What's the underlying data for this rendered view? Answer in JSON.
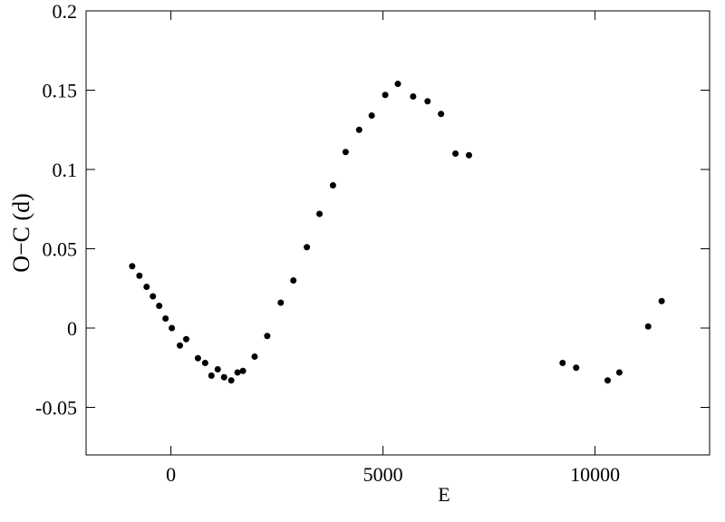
{
  "chart_data": {
    "type": "scatter",
    "xlabel": "E",
    "ylabel": "O−C (d)",
    "xlim": [
      -2000,
      12700
    ],
    "xticks": [
      0,
      5000,
      10000
    ],
    "ylim": [
      -0.08,
      0.2
    ],
    "yticks": [
      -0.05,
      0,
      0.05,
      0.1,
      0.15,
      0.2
    ],
    "color": "#000000",
    "x": [
      -913,
      -743,
      -573,
      -425,
      -276,
      -127,
      21,
      212,
      361,
      637,
      807,
      955,
      1104,
      1253,
      1422,
      1571,
      1698,
      1974,
      2271,
      2590,
      2887,
      3205,
      3503,
      3821,
      4119,
      4437,
      4734,
      5053,
      5350,
      5711,
      6051,
      6369,
      6709,
      7027,
      9235,
      9554,
      10297,
      10573,
      11252,
      11570
    ],
    "y": [
      0.039,
      0.033,
      0.026,
      0.02,
      0.014,
      0.006,
      0.0,
      -0.011,
      -0.007,
      -0.019,
      -0.022,
      -0.03,
      -0.026,
      -0.031,
      -0.033,
      -0.028,
      -0.027,
      -0.018,
      -0.005,
      0.016,
      0.03,
      0.051,
      0.072,
      0.09,
      0.111,
      0.125,
      0.134,
      0.147,
      0.154,
      0.146,
      0.143,
      0.135,
      0.11,
      0.109,
      -0.022,
      -0.025,
      -0.033,
      -0.028,
      0.001,
      0.017
    ]
  }
}
